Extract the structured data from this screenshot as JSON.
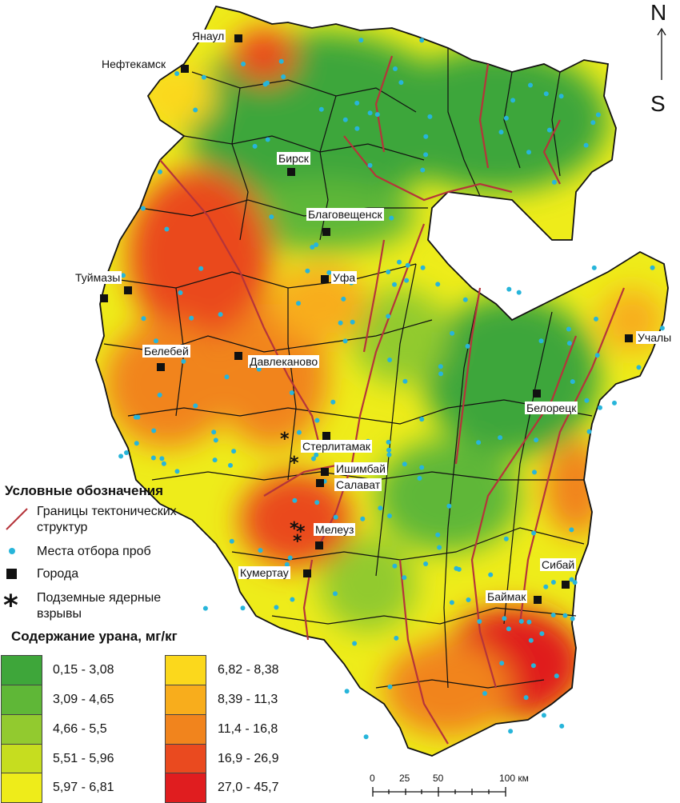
{
  "compass": {
    "north": "N",
    "south": "S"
  },
  "cities": [
    {
      "name": "Янаул"
    },
    {
      "name": "Нефтекамск"
    },
    {
      "name": "Бирск"
    },
    {
      "name": "Благовещенск"
    },
    {
      "name": "Туймазы"
    },
    {
      "name": "Уфа"
    },
    {
      "name": "Учалы"
    },
    {
      "name": "Белебей"
    },
    {
      "name": "Давлеканово"
    },
    {
      "name": "Белорецк"
    },
    {
      "name": "Стерлитамак"
    },
    {
      "name": "Ишимбай"
    },
    {
      "name": "Салават"
    },
    {
      "name": "Мелеуз"
    },
    {
      "name": "Кумертау"
    },
    {
      "name": "Сибай"
    },
    {
      "name": "Баймак"
    }
  ],
  "legend": {
    "title": "Условные обозначения",
    "items": [
      {
        "label_line1": "Границы тектонических",
        "label_line2": "структур",
        "symbol": "red-line"
      },
      {
        "label_line1": "Места отбора проб",
        "label_line2": "",
        "symbol": "cyan-dot"
      },
      {
        "label_line1": "Города",
        "label_line2": "",
        "symbol": "black-square"
      },
      {
        "label_line1": "Подземные ядерные",
        "label_line2": "взрывы",
        "symbol": "asterisk"
      }
    ],
    "classes_title": "Содержание урана, мг/кг",
    "classes": [
      {
        "label": "0,15 - 3,08",
        "color": "#3ea63a"
      },
      {
        "label": "3,09 - 4,65",
        "color": "#5fb737"
      },
      {
        "label": "4,66 - 5,5",
        "color": "#92ca2f"
      },
      {
        "label": "5,51 - 5,96",
        "color": "#c6dd1f"
      },
      {
        "label": "5,97 - 6,81",
        "color": "#eeec1a"
      },
      {
        "label": "6,82 - 8,38",
        "color": "#fbd81c"
      },
      {
        "label": "8,39 - 11,3",
        "color": "#f8ad1c"
      },
      {
        "label": "11,4 - 16,8",
        "color": "#f1841d"
      },
      {
        "label": "16,9 - 26,9",
        "color": "#ea4a1f"
      },
      {
        "label": "27,0 - 45,7",
        "color": "#e01d1f"
      }
    ]
  },
  "scale": {
    "ticks": [
      "0",
      "25",
      "50",
      "100 км"
    ]
  },
  "colors": {
    "tectonic": "#b5343a",
    "sample": "#27b5da",
    "city": "#111111",
    "border": "#111111"
  }
}
